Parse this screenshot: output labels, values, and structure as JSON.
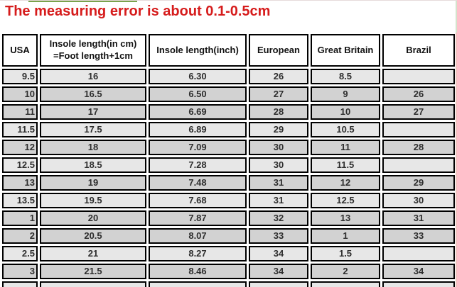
{
  "title": "The measuring error is about 0.1-0.5cm",
  "colors": {
    "title_red": "#d61c1c",
    "accent_green": "#79a24c",
    "edge_green": "#d4e4cc",
    "edge_pink": "#f0c4be",
    "row_light": "#e7e7e7",
    "row_dark": "#d2d2d2",
    "cell_border": "#000000",
    "cell_text": "#2e2e2e"
  },
  "chart_data": {
    "type": "table",
    "title": "The measuring error is about 0.1-0.5cm",
    "columns": [
      "USA",
      "Insole length(in cm)\n=Foot length+1cm",
      "Insole length(inch)",
      "European",
      "Great Britain",
      "Brazil"
    ],
    "column_keys": [
      "usa",
      "insole_cm",
      "insole_inch",
      "european",
      "great_britain",
      "brazil"
    ],
    "rows": [
      {
        "usa": "9.5",
        "insole_cm": "16",
        "insole_inch": "6.30",
        "european": "26",
        "great_britain": "8.5",
        "brazil": "",
        "shade": "light"
      },
      {
        "usa": "10",
        "insole_cm": "16.5",
        "insole_inch": "6.50",
        "european": "27",
        "great_britain": "9",
        "brazil": "26",
        "shade": "dark"
      },
      {
        "usa": "11",
        "insole_cm": "17",
        "insole_inch": "6.69",
        "european": "28",
        "great_britain": "10",
        "brazil": "27",
        "shade": "dark"
      },
      {
        "usa": "11.5",
        "insole_cm": "17.5",
        "insole_inch": "6.89",
        "european": "29",
        "great_britain": "10.5",
        "brazil": "",
        "shade": "light"
      },
      {
        "usa": "12",
        "insole_cm": "18",
        "insole_inch": "7.09",
        "european": "30",
        "great_britain": "11",
        "brazil": "28",
        "shade": "dark"
      },
      {
        "usa": "12.5",
        "insole_cm": "18.5",
        "insole_inch": "7.28",
        "european": "30",
        "great_britain": "11.5",
        "brazil": "",
        "shade": "light"
      },
      {
        "usa": "13",
        "insole_cm": "19",
        "insole_inch": "7.48",
        "european": "31",
        "great_britain": "12",
        "brazil": "29",
        "shade": "dark"
      },
      {
        "usa": "13.5",
        "insole_cm": "19.5",
        "insole_inch": "7.68",
        "european": "31",
        "great_britain": "12.5",
        "brazil": "30",
        "shade": "light"
      },
      {
        "usa": "1",
        "insole_cm": "20",
        "insole_inch": "7.87",
        "european": "32",
        "great_britain": "13",
        "brazil": "31",
        "shade": "dark"
      },
      {
        "usa": "2",
        "insole_cm": "20.5",
        "insole_inch": "8.07",
        "european": "33",
        "great_britain": "1",
        "brazil": "33",
        "shade": "dark"
      },
      {
        "usa": "2.5",
        "insole_cm": "21",
        "insole_inch": "8.27",
        "european": "34",
        "great_britain": "1.5",
        "brazil": "",
        "shade": "light"
      },
      {
        "usa": "3",
        "insole_cm": "21.5",
        "insole_inch": "8.46",
        "european": "34",
        "great_britain": "2",
        "brazil": "34",
        "shade": "dark"
      }
    ]
  }
}
